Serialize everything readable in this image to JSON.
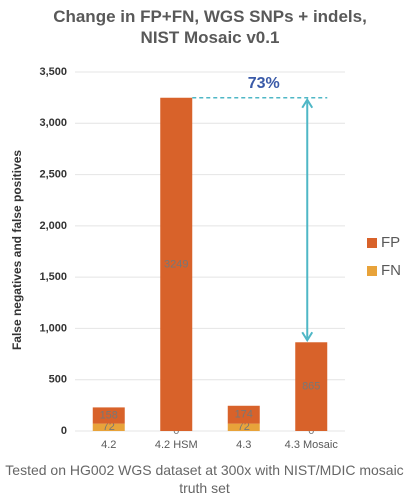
{
  "chart_data": {
    "type": "stacked-bar",
    "title": "Change in FP+FN, WGS SNPs + indels, NIST Mosaic v0.1",
    "y_label": "False negatives and false positives",
    "categories": [
      "4.2",
      "4.2 HSM",
      "4.3",
      "4.3 Mosaic"
    ],
    "series": [
      {
        "name": "FN",
        "color": "#e8a33a",
        "values": [
          72,
          0,
          72,
          0
        ]
      },
      {
        "name": "FP",
        "color": "#d8622a",
        "values": [
          158,
          3249,
          174,
          865
        ]
      }
    ],
    "ylim": [
      0,
      3500
    ],
    "yticks": [
      0,
      500,
      {
        "value": 1000,
        "label": "1,000"
      },
      {
        "value": 1500,
        "label": "1,500"
      },
      {
        "value": 2000,
        "label": "2,000"
      },
      {
        "value": 2500,
        "label": "2,500"
      },
      {
        "value": 3000,
        "label": "3,000"
      },
      {
        "value": 3500,
        "label": "3,500"
      }
    ],
    "grid": true,
    "annotation": "73%",
    "caption": "Tested on HG002 WGS dataset at 300x with NIST/MDIC mosaic truth set"
  }
}
